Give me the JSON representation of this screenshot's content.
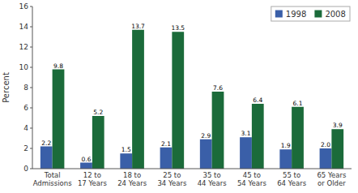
{
  "chart_data": {
    "type": "bar",
    "categories": [
      "Total\nAdmissions",
      "12 to\n17 Years",
      "18 to\n24 Years",
      "25 to\n34 Years",
      "35 to\n44 Years",
      "45 to\n54 Years",
      "55 to\n64 Years",
      "65 Years\nor Older"
    ],
    "series": [
      {
        "name": "1998",
        "color": "#3a5fa8",
        "values": [
          2.2,
          0.6,
          1.5,
          2.1,
          2.9,
          3.1,
          1.9,
          2.0
        ],
        "value_labels": [
          "2.2",
          "0.6",
          "1.5",
          "2.1",
          "2.9",
          "3.1",
          "1.9",
          "2.0"
        ]
      },
      {
        "name": "2008",
        "color": "#1b6b3a",
        "values": [
          9.8,
          5.2,
          13.7,
          13.5,
          7.6,
          6.4,
          6.1,
          3.9
        ]
      }
    ],
    "ylabel": "Percent",
    "ylim": [
      0,
      16
    ],
    "yticks": [
      0,
      2,
      4,
      6,
      8,
      10,
      12,
      14,
      16
    ],
    "grid": false,
    "legend": "upper right",
    "data_labels": true
  }
}
